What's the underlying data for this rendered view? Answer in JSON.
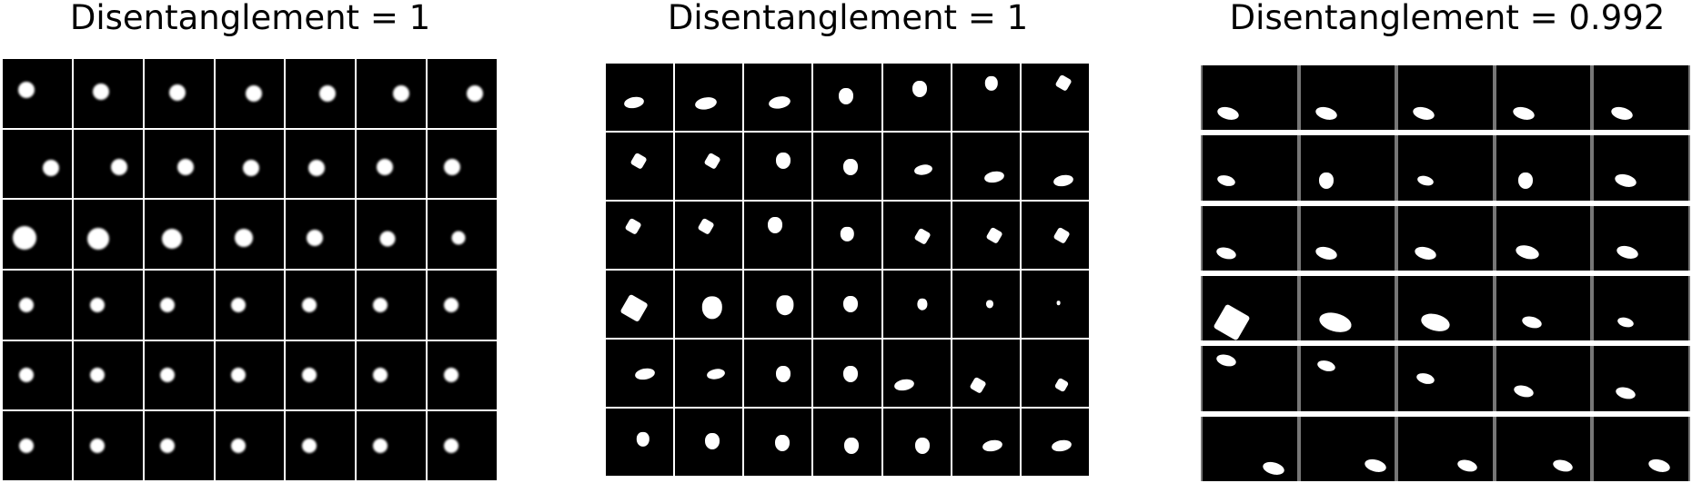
{
  "panels": [
    {
      "title": "Disentanglement = 1",
      "rows": 6,
      "cols": 7,
      "cells": [
        [
          {
            "shape": "blob"
          },
          {
            "shape": "blob"
          },
          {
            "shape": "blob"
          },
          {
            "shape": "blob"
          },
          {
            "shape": "blob"
          },
          {
            "shape": "blob"
          },
          {
            "shape": "blob"
          }
        ],
        [
          {
            "shape": "blob"
          },
          {
            "shape": "blob"
          },
          {
            "shape": "blob"
          },
          {
            "shape": "blob"
          },
          {
            "shape": "blob"
          },
          {
            "shape": "blob"
          },
          {
            "shape": "blob"
          }
        ],
        [
          {
            "shape": "blob"
          },
          {
            "shape": "blob"
          },
          {
            "shape": "blob"
          },
          {
            "shape": "blob"
          },
          {
            "shape": "blob"
          },
          {
            "shape": "blob"
          },
          {
            "shape": "blob"
          }
        ],
        [
          {
            "shape": "blob"
          },
          {
            "shape": "blob"
          },
          {
            "shape": "blob"
          },
          {
            "shape": "blob"
          },
          {
            "shape": "blob"
          },
          {
            "shape": "blob"
          },
          {
            "shape": "blob"
          }
        ],
        [
          {
            "shape": "blob"
          },
          {
            "shape": "blob"
          },
          {
            "shape": "blob"
          },
          {
            "shape": "blob"
          },
          {
            "shape": "blob"
          },
          {
            "shape": "blob"
          },
          {
            "shape": "blob"
          }
        ],
        [
          {
            "shape": "blob"
          },
          {
            "shape": "blob"
          },
          {
            "shape": "blob"
          },
          {
            "shape": "blob"
          },
          {
            "shape": "blob"
          },
          {
            "shape": "blob"
          },
          {
            "shape": "blob"
          }
        ]
      ]
    },
    {
      "title": "Disentanglement = 1",
      "rows": 6,
      "cols": 7,
      "cells": [
        [
          {
            "shape": "ellipse"
          },
          {
            "shape": "ellipse"
          },
          {
            "shape": "ellipse"
          },
          {
            "shape": "heart"
          },
          {
            "shape": "heart"
          },
          {
            "shape": "heart"
          },
          {
            "shape": "square"
          }
        ],
        [
          {
            "shape": "square"
          },
          {
            "shape": "square"
          },
          {
            "shape": "heart"
          },
          {
            "shape": "heart"
          },
          {
            "shape": "ellipse"
          },
          {
            "shape": "ellipse"
          },
          {
            "shape": "ellipse"
          }
        ],
        [
          {
            "shape": "square"
          },
          {
            "shape": "square"
          },
          {
            "shape": "heart"
          },
          {
            "shape": "heart"
          },
          {
            "shape": "square"
          },
          {
            "shape": "square"
          },
          {
            "shape": "square"
          }
        ],
        [
          {
            "shape": "square"
          },
          {
            "shape": "heart"
          },
          {
            "shape": "heart"
          },
          {
            "shape": "heart"
          },
          {
            "shape": "heart"
          },
          {
            "shape": "heart"
          },
          {
            "shape": "heart"
          }
        ],
        [
          {
            "shape": "ellipse"
          },
          {
            "shape": "ellipse"
          },
          {
            "shape": "heart"
          },
          {
            "shape": "heart"
          },
          {
            "shape": "ellipse"
          },
          {
            "shape": "square"
          },
          {
            "shape": "square"
          }
        ],
        [
          {
            "shape": "heart"
          },
          {
            "shape": "heart"
          },
          {
            "shape": "heart"
          },
          {
            "shape": "heart"
          },
          {
            "shape": "heart"
          },
          {
            "shape": "ellipse"
          },
          {
            "shape": "ellipse"
          }
        ]
      ]
    },
    {
      "title": "Disentanglement = 0.992",
      "rows": 6,
      "cols": 5,
      "cells": [
        [
          {
            "shape": "ellipse"
          },
          {
            "shape": "ellipse"
          },
          {
            "shape": "ellipse"
          },
          {
            "shape": "ellipse"
          },
          {
            "shape": "ellipse"
          }
        ],
        [
          {
            "shape": "ellipse"
          },
          {
            "shape": "heart"
          },
          {
            "shape": "ellipse"
          },
          {
            "shape": "heart"
          },
          {
            "shape": "ellipse"
          }
        ],
        [
          {
            "shape": "ellipse"
          },
          {
            "shape": "ellipse"
          },
          {
            "shape": "ellipse"
          },
          {
            "shape": "ellipse"
          },
          {
            "shape": "ellipse"
          }
        ],
        [
          {
            "shape": "square"
          },
          {
            "shape": "ellipse"
          },
          {
            "shape": "ellipse"
          },
          {
            "shape": "ellipse"
          },
          {
            "shape": "ellipse"
          }
        ],
        [
          {
            "shape": "ellipse"
          },
          {
            "shape": "ellipse"
          },
          {
            "shape": "ellipse"
          },
          {
            "shape": "ellipse"
          },
          {
            "shape": "ellipse"
          }
        ],
        [
          {
            "shape": "ellipse"
          },
          {
            "shape": "ellipse"
          },
          {
            "shape": "ellipse"
          },
          {
            "shape": "ellipse"
          },
          {
            "shape": "ellipse"
          }
        ]
      ]
    }
  ]
}
